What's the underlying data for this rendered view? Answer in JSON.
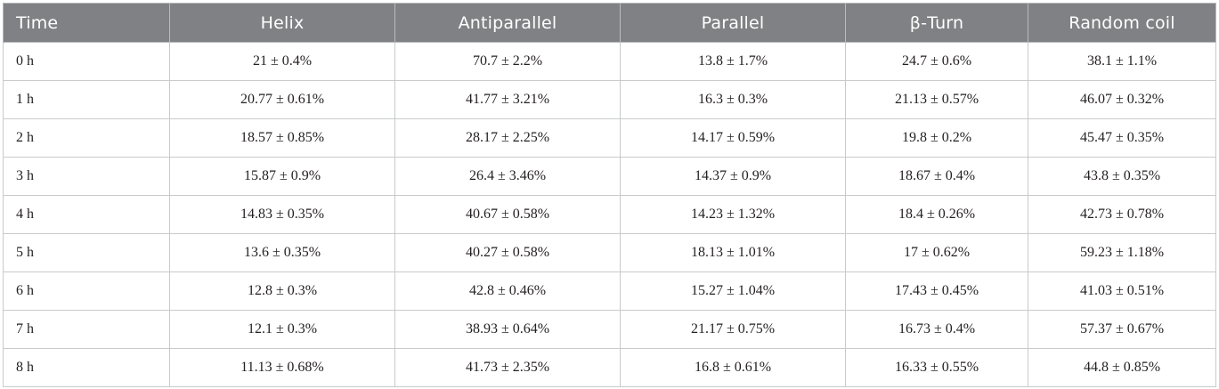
{
  "table": {
    "headers": [
      "Time",
      "Helix",
      "Antiparallel",
      "Parallel",
      "β-Turn",
      "Random coil"
    ],
    "rows": [
      [
        "0 h",
        "21 ± 0.4%",
        "70.7 ± 2.2%",
        "13.8 ± 1.7%",
        "24.7 ± 0.6%",
        "38.1 ± 1.1%"
      ],
      [
        "1 h",
        "20.77 ± 0.61%",
        "41.77 ± 3.21%",
        "16.3 ± 0.3%",
        "21.13 ± 0.57%",
        "46.07 ± 0.32%"
      ],
      [
        "2 h",
        "18.57 ± 0.85%",
        "28.17 ± 2.25%",
        "14.17 ± 0.59%",
        "19.8 ± 0.2%",
        "45.47 ± 0.35%"
      ],
      [
        "3 h",
        "15.87 ± 0.9%",
        "26.4 ± 3.46%",
        "14.37 ± 0.9%",
        "18.67 ± 0.4%",
        "43.8 ± 0.35%"
      ],
      [
        "4 h",
        "14.83 ± 0.35%",
        "40.67 ± 0.58%",
        "14.23 ± 1.32%",
        "18.4 ± 0.26%",
        "42.73 ± 0.78%"
      ],
      [
        "5 h",
        "13.6 ± 0.35%",
        "40.27 ± 0.58%",
        "18.13 ± 1.01%",
        "17 ± 0.62%",
        "59.23 ± 1.18%"
      ],
      [
        "6 h",
        "12.8 ± 0.3%",
        "42.8 ± 0.46%",
        "15.27 ± 1.04%",
        "17.43 ± 0.45%",
        "41.03 ± 0.51%"
      ],
      [
        "7 h",
        "12.1 ± 0.3%",
        "38.93 ± 0.64%",
        "21.17 ± 0.75%",
        "16.73 ± 0.4%",
        "57.37 ± 0.67%"
      ],
      [
        "8 h",
        "11.13 ± 0.68%",
        "41.73 ± 2.35%",
        "16.8 ± 0.61%",
        "16.33 ± 0.55%",
        "44.8 ± 0.85%"
      ]
    ]
  }
}
